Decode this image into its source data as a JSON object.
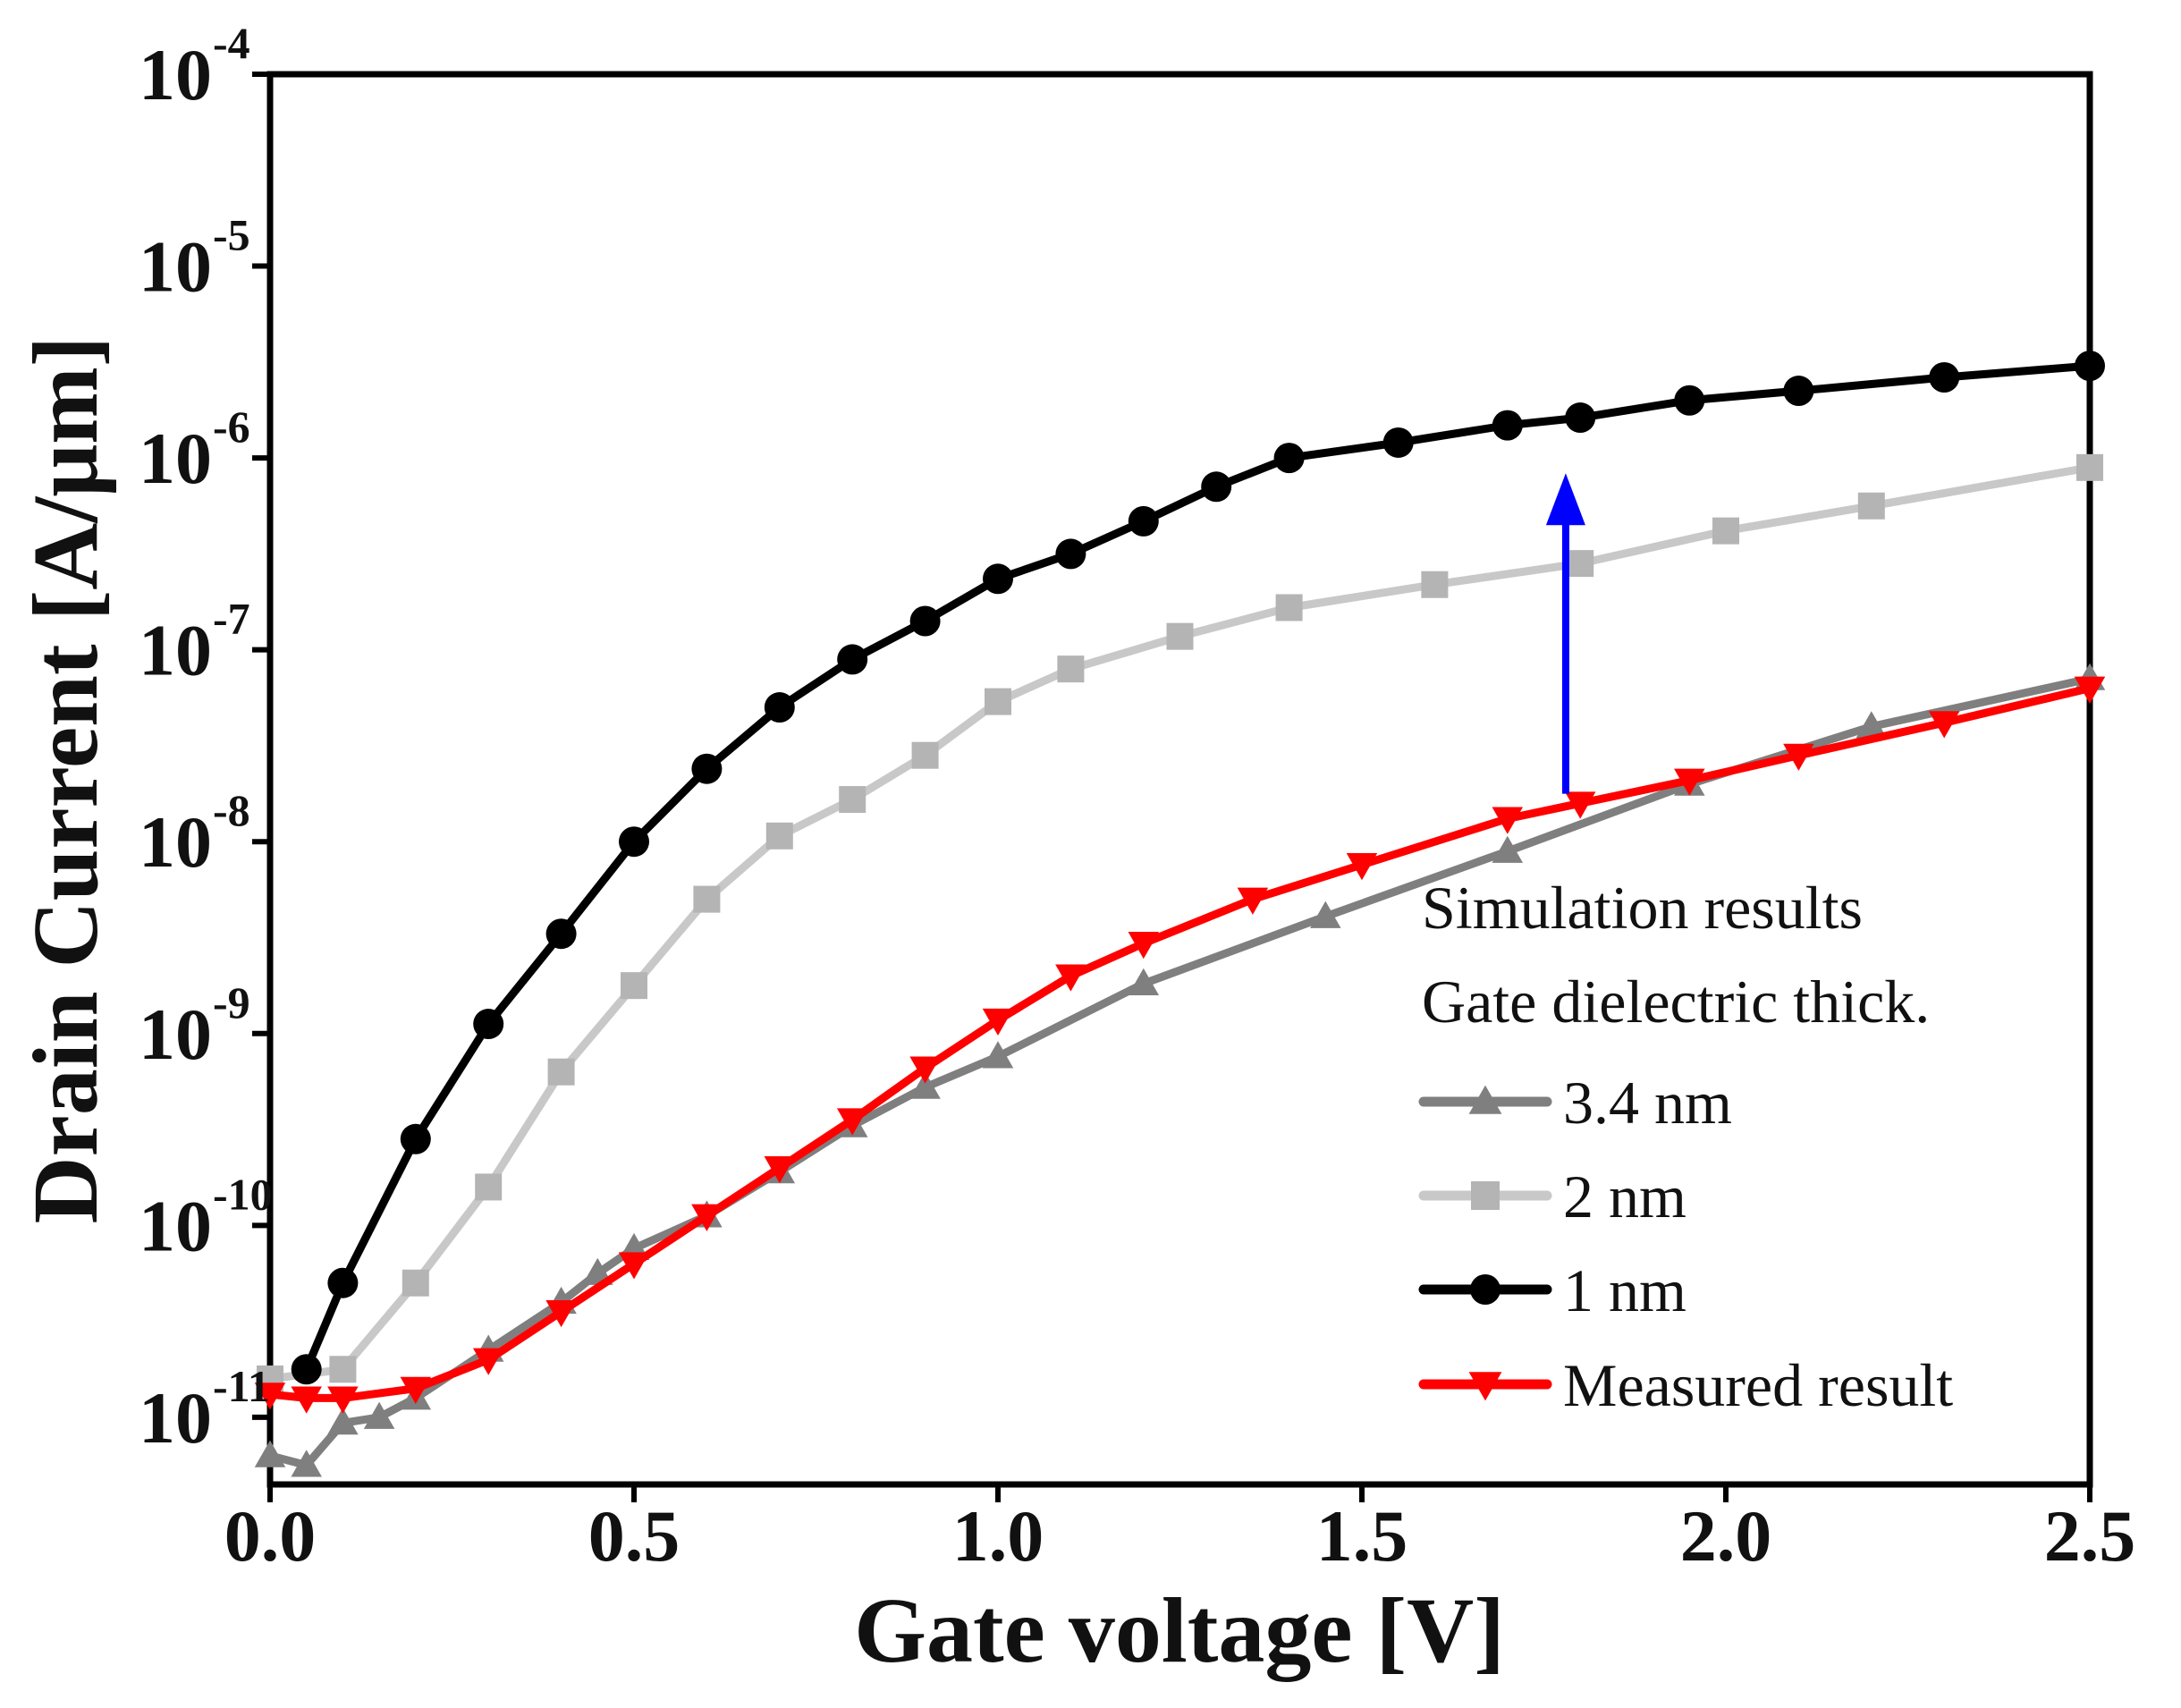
{
  "chart_data": {
    "type": "line",
    "title": "",
    "xlabel": "Gate voltage [V]",
    "ylabel": "Drain Current [A/μm]",
    "xlim": [
      0.0,
      2.5
    ],
    "ylim_log10": [
      -11.35,
      -4.0
    ],
    "x_ticks": [
      {
        "value": 0.0,
        "label": "0.0"
      },
      {
        "value": 0.5,
        "label": "0.5"
      },
      {
        "value": 1.0,
        "label": "1.0"
      },
      {
        "value": 1.5,
        "label": "1.5"
      },
      {
        "value": 2.0,
        "label": "2.0"
      },
      {
        "value": 2.5,
        "label": "2.5"
      }
    ],
    "y_ticks": [
      {
        "exp": -4,
        "base": "10",
        "power": "-4"
      },
      {
        "exp": -5,
        "base": "10",
        "power": "-5"
      },
      {
        "exp": -6,
        "base": "10",
        "power": "-6"
      },
      {
        "exp": -7,
        "base": "10",
        "power": "-7"
      },
      {
        "exp": -8,
        "base": "10",
        "power": "-8"
      },
      {
        "exp": -9,
        "base": "10",
        "power": "-9"
      },
      {
        "exp": -10,
        "base": "10",
        "power": "-10"
      },
      {
        "exp": -11,
        "base": "10",
        "power": "-11"
      }
    ],
    "legend_title_lines": [
      "Simulation results",
      "Gate dielectric thick."
    ],
    "series": [
      {
        "name": "3.4 nm",
        "color": "#7f7f7f",
        "marker": "triangle-up",
        "x": [
          0.0,
          0.05,
          0.1,
          0.15,
          0.2,
          0.3,
          0.4,
          0.45,
          0.5,
          0.6,
          0.7,
          0.8,
          0.9,
          1.0,
          1.2,
          1.45,
          1.7,
          1.95,
          2.2,
          2.5
        ],
        "log10_y": [
          -11.2,
          -11.25,
          -11.03,
          -11.0,
          -10.9,
          -10.65,
          -10.4,
          -10.25,
          -10.12,
          -9.95,
          -9.72,
          -9.48,
          -9.28,
          -9.12,
          -8.74,
          -8.39,
          -8.05,
          -7.7,
          -7.4,
          -7.15
        ]
      },
      {
        "name": "2 nm",
        "color": "#c8c8c8",
        "marker": "square",
        "x": [
          0.0,
          0.1,
          0.2,
          0.3,
          0.4,
          0.5,
          0.6,
          0.7,
          0.8,
          0.9,
          1.0,
          1.1,
          1.25,
          1.4,
          1.6,
          1.8,
          2.0,
          2.2,
          2.5
        ],
        "log10_y": [
          -10.8,
          -10.75,
          -10.3,
          -9.8,
          -9.2,
          -8.75,
          -8.3,
          -7.97,
          -7.78,
          -7.55,
          -7.27,
          -7.1,
          -6.93,
          -6.78,
          -6.66,
          -6.55,
          -6.38,
          -6.25,
          -6.05
        ]
      },
      {
        "name": "1 nm",
        "color": "#000000",
        "marker": "circle",
        "x": [
          0.05,
          0.1,
          0.2,
          0.3,
          0.4,
          0.5,
          0.6,
          0.7,
          0.8,
          0.9,
          1.0,
          1.1,
          1.2,
          1.3,
          1.4,
          1.55,
          1.7,
          1.8,
          1.95,
          2.1,
          2.3,
          2.5
        ],
        "log10_y": [
          -10.75,
          -10.3,
          -9.55,
          -8.95,
          -8.48,
          -8.0,
          -7.62,
          -7.3,
          -7.05,
          -6.85,
          -6.63,
          -6.5,
          -6.33,
          -6.15,
          -6.0,
          -5.92,
          -5.83,
          -5.79,
          -5.7,
          -5.65,
          -5.58,
          -5.52
        ]
      },
      {
        "name": "Measured result",
        "color": "#ff0000",
        "marker": "triangle-down",
        "x": [
          0.0,
          0.05,
          0.1,
          0.2,
          0.3,
          0.4,
          0.5,
          0.6,
          0.7,
          0.8,
          0.9,
          1.0,
          1.1,
          1.2,
          1.35,
          1.5,
          1.7,
          1.8,
          1.95,
          2.1,
          2.3,
          2.5
        ],
        "log10_y": [
          -10.88,
          -10.9,
          -10.9,
          -10.85,
          -10.7,
          -10.45,
          -10.2,
          -9.95,
          -9.7,
          -9.45,
          -9.18,
          -8.93,
          -8.7,
          -8.53,
          -8.3,
          -8.12,
          -7.88,
          -7.8,
          -7.68,
          -7.55,
          -7.38,
          -7.2
        ]
      }
    ],
    "annotations": [
      {
        "type": "arrow",
        "color": "#0000ff",
        "x": 1.78,
        "from_log10_y": -7.75,
        "to_log10_y": -6.08
      }
    ]
  }
}
